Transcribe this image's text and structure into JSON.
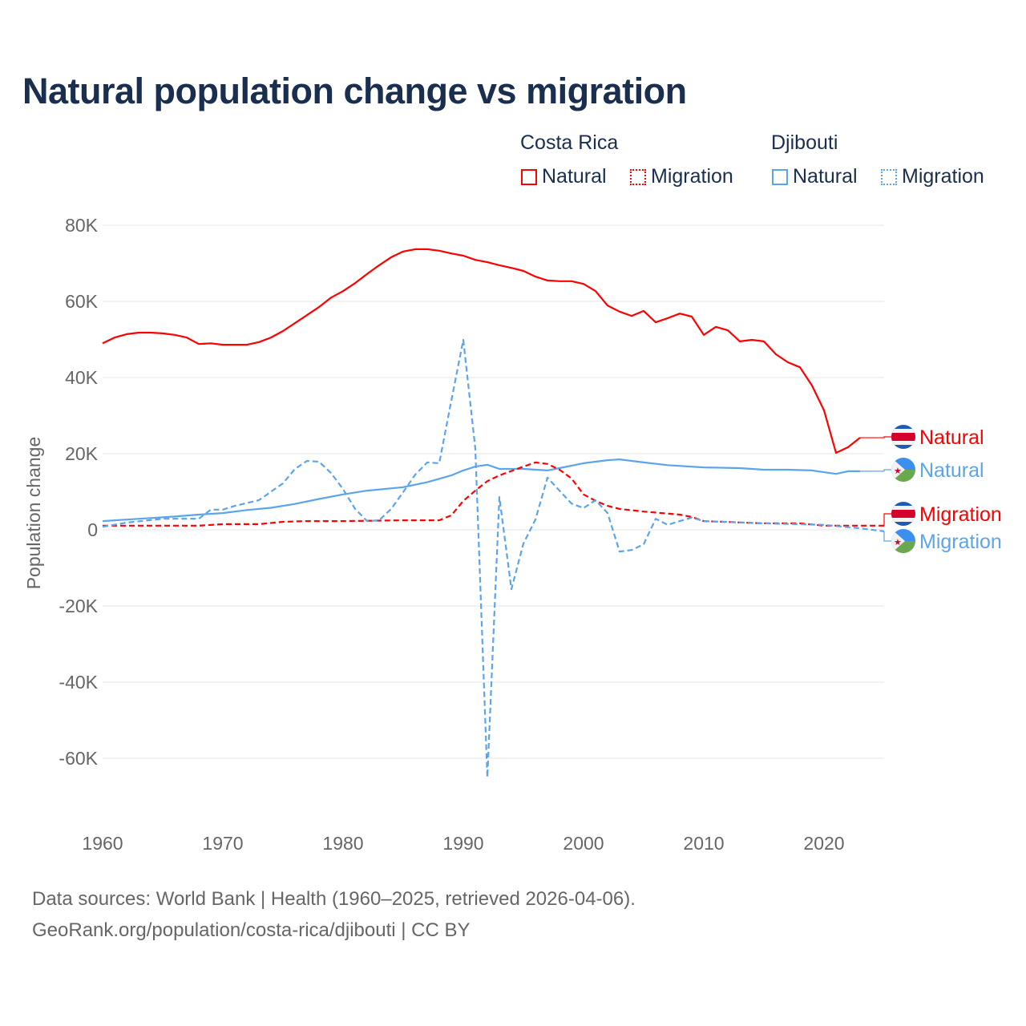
{
  "title": "Natural population change vs migration",
  "legend": {
    "groups": [
      {
        "name": "Costa Rica",
        "items": [
          {
            "label": "Natural",
            "style": "solid"
          },
          {
            "label": "Migration",
            "style": "dotted"
          }
        ],
        "color": "#ff0000"
      },
      {
        "name": "Djibouti",
        "items": [
          {
            "label": "Natural",
            "style": "solid"
          },
          {
            "label": "Migration",
            "style": "dotted"
          }
        ],
        "color": "#5ca4ec"
      }
    ]
  },
  "footer": {
    "line1": "Data sources: World Bank | Health (1960–2025, retrieved 2026-04-06).",
    "line2": "GeoRank.org/population/costa-rica/djibouti | CC BY"
  },
  "chart_data": {
    "type": "line",
    "title": "Natural population change vs migration",
    "xlabel": "",
    "ylabel": "Population change",
    "xlim": [
      1960,
      2025
    ],
    "ylim": [
      -70000,
      85000
    ],
    "x_ticks": [
      "1960",
      "1970",
      "1980",
      "1990",
      "2000",
      "2010",
      "2020"
    ],
    "x_tick_values": [
      1960,
      1970,
      1980,
      1990,
      2000,
      2010,
      2020
    ],
    "y_ticks": [
      "-60K",
      "-40K",
      "-20K",
      "0",
      "20K",
      "40K",
      "60K",
      "80K"
    ],
    "y_tick_values": [
      -60000,
      -40000,
      -20000,
      0,
      20000,
      40000,
      60000,
      80000
    ],
    "grid": true,
    "legend_position": "top-right",
    "series": [
      {
        "name": "Costa Rica Natural",
        "end_label": "Natural",
        "color": "#ff0000",
        "dash": "solid",
        "flag": "costa-rica",
        "points": [
          [
            1960,
            49.0
          ],
          [
            1961,
            50.5
          ],
          [
            1962,
            51.4
          ],
          [
            1963,
            51.8
          ],
          [
            1964,
            51.8
          ],
          [
            1965,
            51.6
          ],
          [
            1966,
            51.2
          ],
          [
            1967,
            50.5
          ],
          [
            1968,
            48.8
          ],
          [
            1969,
            49.0
          ],
          [
            1970,
            48.6
          ],
          [
            1971,
            48.6
          ],
          [
            1972,
            48.6
          ],
          [
            1973,
            49.3
          ],
          [
            1974,
            50.5
          ],
          [
            1975,
            52.2
          ],
          [
            1976,
            54.3
          ],
          [
            1977,
            56.4
          ],
          [
            1978,
            58.5
          ],
          [
            1979,
            61.0
          ],
          [
            1980,
            62.7
          ],
          [
            1981,
            64.8
          ],
          [
            1982,
            67.2
          ],
          [
            1983,
            69.5
          ],
          [
            1984,
            71.6
          ],
          [
            1985,
            73.1
          ],
          [
            1986,
            73.7
          ],
          [
            1987,
            73.7
          ],
          [
            1988,
            73.3
          ],
          [
            1989,
            72.6
          ],
          [
            1990,
            72.0
          ],
          [
            1991,
            70.9
          ],
          [
            1992,
            70.3
          ],
          [
            1993,
            69.5
          ],
          [
            1994,
            68.8
          ],
          [
            1995,
            68.0
          ],
          [
            1996,
            66.5
          ],
          [
            1997,
            65.5
          ],
          [
            1998,
            65.3
          ],
          [
            1999,
            65.3
          ],
          [
            2000,
            64.6
          ],
          [
            2001,
            62.7
          ],
          [
            2002,
            58.9
          ],
          [
            2003,
            57.3
          ],
          [
            2004,
            56.2
          ],
          [
            2005,
            57.5
          ],
          [
            2006,
            54.5
          ],
          [
            2007,
            55.6
          ],
          [
            2008,
            56.8
          ],
          [
            2009,
            56.0
          ],
          [
            2010,
            51.2
          ],
          [
            2011,
            53.3
          ],
          [
            2012,
            52.4
          ],
          [
            2013,
            49.5
          ],
          [
            2014,
            49.9
          ],
          [
            2015,
            49.5
          ],
          [
            2016,
            46.1
          ],
          [
            2017,
            44.0
          ],
          [
            2018,
            42.7
          ],
          [
            2019,
            37.9
          ],
          [
            2020,
            31.4
          ],
          [
            2021,
            20.2
          ],
          [
            2022,
            21.7
          ],
          [
            2023,
            24.2
          ]
        ]
      },
      {
        "name": "Djibouti Natural",
        "end_label": "Natural",
        "color": "#5ca4ec",
        "dash": "solid",
        "flag": "djibouti",
        "points": [
          [
            1960,
            2.3
          ],
          [
            1962,
            2.7
          ],
          [
            1964,
            3.1
          ],
          [
            1966,
            3.5
          ],
          [
            1968,
            4.0
          ],
          [
            1970,
            4.4
          ],
          [
            1972,
            5.2
          ],
          [
            1974,
            5.8
          ],
          [
            1976,
            6.8
          ],
          [
            1978,
            8.1
          ],
          [
            1980,
            9.3
          ],
          [
            1982,
            10.3
          ],
          [
            1985,
            11.2
          ],
          [
            1987,
            12.5
          ],
          [
            1989,
            14.3
          ],
          [
            1990,
            15.6
          ],
          [
            1991,
            16.6
          ],
          [
            1992,
            17.1
          ],
          [
            1993,
            16.0
          ],
          [
            1995,
            16.0
          ],
          [
            1997,
            15.6
          ],
          [
            1998,
            16.2
          ],
          [
            2000,
            17.5
          ],
          [
            2002,
            18.3
          ],
          [
            2003,
            18.5
          ],
          [
            2005,
            17.7
          ],
          [
            2007,
            17.0
          ],
          [
            2010,
            16.4
          ],
          [
            2013,
            16.2
          ],
          [
            2015,
            15.8
          ],
          [
            2017,
            15.8
          ],
          [
            2019,
            15.6
          ],
          [
            2021,
            14.7
          ],
          [
            2022,
            15.4
          ],
          [
            2023,
            15.4
          ]
        ]
      },
      {
        "name": "Costa Rica Migration",
        "end_label": "Migration",
        "color": "#ff0000",
        "dash": "dashed",
        "flag": "costa-rica",
        "points": [
          [
            1960,
            1.1
          ],
          [
            1968,
            1.1
          ],
          [
            1970,
            1.5
          ],
          [
            1973,
            1.5
          ],
          [
            1975,
            2.1
          ],
          [
            1977,
            2.3
          ],
          [
            1980,
            2.3
          ],
          [
            1985,
            2.5
          ],
          [
            1988,
            2.5
          ],
          [
            1989,
            3.8
          ],
          [
            1990,
            7.6
          ],
          [
            1991,
            10.3
          ],
          [
            1992,
            12.8
          ],
          [
            1993,
            14.3
          ],
          [
            1995,
            16.6
          ],
          [
            1996,
            17.7
          ],
          [
            1997,
            17.3
          ],
          [
            1998,
            15.8
          ],
          [
            1999,
            13.5
          ],
          [
            2000,
            9.3
          ],
          [
            2001,
            7.6
          ],
          [
            2002,
            6.3
          ],
          [
            2003,
            5.5
          ],
          [
            2005,
            4.8
          ],
          [
            2008,
            4.0
          ],
          [
            2009,
            3.4
          ],
          [
            2010,
            2.3
          ],
          [
            2015,
            1.7
          ],
          [
            2018,
            1.7
          ],
          [
            2020,
            1.1
          ],
          [
            2025,
            1.1
          ]
        ]
      },
      {
        "name": "Djibouti Migration",
        "end_label": "Migration",
        "color": "#5ca4ec",
        "dash": "dashed",
        "flag": "djibouti",
        "points": [
          [
            1960,
            0.8
          ],
          [
            1962,
            1.9
          ],
          [
            1965,
            2.9
          ],
          [
            1968,
            2.9
          ],
          [
            1969,
            5.3
          ],
          [
            1970,
            5.3
          ],
          [
            1971,
            6.3
          ],
          [
            1973,
            7.8
          ],
          [
            1975,
            12.2
          ],
          [
            1976,
            16.0
          ],
          [
            1977,
            18.1
          ],
          [
            1978,
            17.9
          ],
          [
            1979,
            14.9
          ],
          [
            1980,
            10.7
          ],
          [
            1981,
            5.5
          ],
          [
            1982,
            2.3
          ],
          [
            1983,
            2.5
          ],
          [
            1984,
            5.5
          ],
          [
            1985,
            9.9
          ],
          [
            1986,
            14.5
          ],
          [
            1987,
            17.7
          ],
          [
            1988,
            17.5
          ],
          [
            1989,
            33.9
          ],
          [
            1990,
            49.9
          ],
          [
            1991,
            21.3
          ],
          [
            1992,
            -65.0
          ],
          [
            1993,
            8.6
          ],
          [
            1994,
            -15.6
          ],
          [
            1995,
            -3.6
          ],
          [
            1996,
            2.7
          ],
          [
            1997,
            13.7
          ],
          [
            1998,
            10.3
          ],
          [
            1999,
            6.9
          ],
          [
            2000,
            5.7
          ],
          [
            2001,
            7.8
          ],
          [
            2002,
            4.4
          ],
          [
            2003,
            -5.7
          ],
          [
            2004,
            -5.3
          ],
          [
            2005,
            -3.8
          ],
          [
            2006,
            2.9
          ],
          [
            2007,
            1.3
          ],
          [
            2008,
            2.3
          ],
          [
            2009,
            3.2
          ],
          [
            2010,
            2.3
          ],
          [
            2015,
            1.7
          ],
          [
            2020,
            1.3
          ],
          [
            2023,
            0.4
          ],
          [
            2025,
            -0.4
          ]
        ]
      }
    ],
    "units": "thousands"
  }
}
